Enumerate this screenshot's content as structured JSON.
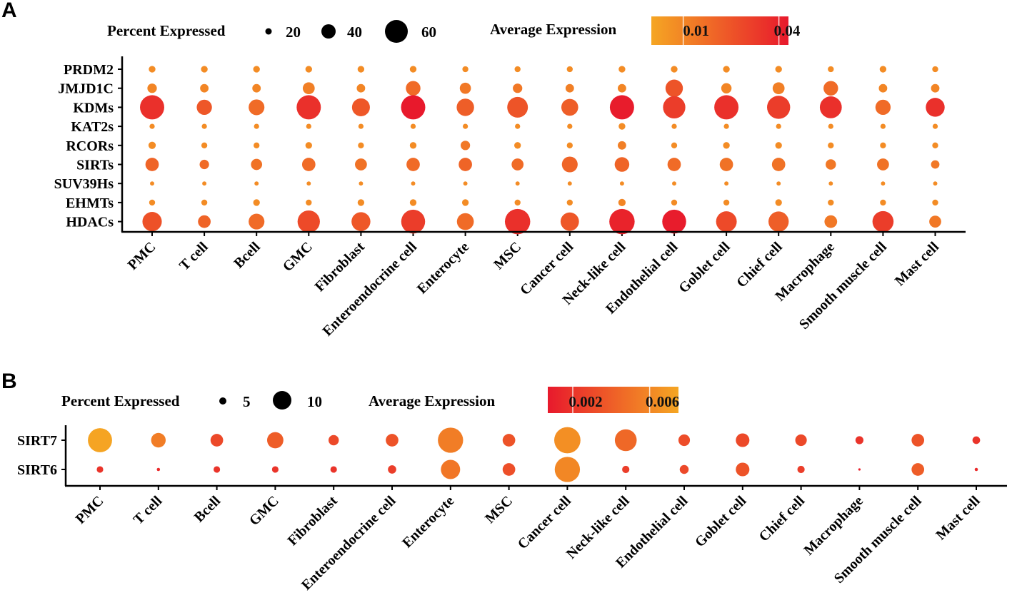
{
  "chart_data": [
    {
      "type": "dotplot",
      "panel": "A",
      "size_legend": {
        "title": "Percent Expressed",
        "values": [
          20,
          40,
          60
        ]
      },
      "color_legend": {
        "title": "Average Expression",
        "ticks": [
          0.01,
          0.04
        ],
        "tick_labels": [
          "0.01",
          "0.04"
        ],
        "range": [
          0.0,
          0.043
        ],
        "low_color": "#F5A623",
        "high_color": "#E8192C"
      },
      "cells": [
        "PMC",
        "T cell",
        "Bcell",
        "GMC",
        "Fibroblast",
        "Enteroendocrine cell",
        "Enterocyte",
        "MSC",
        "Cancer cell",
        "Neck-like cell",
        "Endothelial cell",
        "Goblet cell",
        "Chief cell",
        "Macrophage",
        "Smooth muscle cell",
        "Mast cell"
      ],
      "genes": [
        "PRDM2",
        "JMJD1C",
        "KDMs",
        "KAT2s",
        "RCORs",
        "SIRTs",
        "SUV39Hs",
        "EHMTs",
        "HDACs"
      ],
      "pct": [
        [
          5,
          5,
          5,
          5,
          5,
          5,
          4,
          4,
          4,
          5,
          5,
          5,
          5,
          4,
          5,
          4
        ],
        [
          10,
          8,
          8,
          16,
          8,
          24,
          14,
          10,
          8,
          8,
          34,
          12,
          16,
          24,
          8,
          8
        ],
        [
          66,
          26,
          28,
          66,
          36,
          66,
          34,
          48,
          32,
          66,
          56,
          66,
          60,
          54,
          26,
          40
        ],
        [
          3,
          3,
          3,
          3,
          3,
          3,
          3,
          3,
          3,
          5,
          3,
          3,
          3,
          3,
          3,
          3
        ],
        [
          6,
          4,
          4,
          5,
          4,
          5,
          10,
          5,
          4,
          8,
          4,
          5,
          5,
          4,
          4,
          4
        ],
        [
          20,
          10,
          14,
          20,
          16,
          20,
          20,
          16,
          28,
          24,
          20,
          20,
          20,
          12,
          16,
          8
        ],
        [
          2,
          2,
          2,
          2,
          2,
          2,
          2,
          2,
          2,
          2,
          2,
          2,
          2,
          2,
          2,
          2
        ],
        [
          4,
          4,
          5,
          4,
          5,
          5,
          5,
          4,
          4,
          6,
          4,
          4,
          5,
          4,
          4,
          4
        ],
        [
          42,
          18,
          28,
          56,
          40,
          64,
          32,
          72,
          38,
          72,
          64,
          48,
          46,
          18,
          50,
          16
        ]
      ],
      "avg": [
        [
          0.008,
          0.008,
          0.008,
          0.008,
          0.008,
          0.008,
          0.008,
          0.008,
          0.008,
          0.008,
          0.008,
          0.008,
          0.008,
          0.008,
          0.008,
          0.008
        ],
        [
          0.01,
          0.01,
          0.01,
          0.012,
          0.01,
          0.018,
          0.014,
          0.014,
          0.012,
          0.01,
          0.025,
          0.01,
          0.012,
          0.018,
          0.01,
          0.01
        ],
        [
          0.036,
          0.024,
          0.018,
          0.036,
          0.024,
          0.043,
          0.022,
          0.025,
          0.022,
          0.042,
          0.032,
          0.036,
          0.032,
          0.036,
          0.018,
          0.036
        ],
        [
          0.008,
          0.008,
          0.008,
          0.008,
          0.008,
          0.008,
          0.008,
          0.008,
          0.008,
          0.008,
          0.008,
          0.008,
          0.008,
          0.008,
          0.008,
          0.008
        ],
        [
          0.008,
          0.008,
          0.008,
          0.008,
          0.008,
          0.008,
          0.014,
          0.008,
          0.008,
          0.012,
          0.008,
          0.008,
          0.008,
          0.008,
          0.008,
          0.008
        ],
        [
          0.02,
          0.018,
          0.016,
          0.018,
          0.016,
          0.018,
          0.02,
          0.018,
          0.02,
          0.02,
          0.018,
          0.016,
          0.016,
          0.014,
          0.016,
          0.014
        ],
        [
          0.008,
          0.008,
          0.008,
          0.008,
          0.008,
          0.008,
          0.008,
          0.008,
          0.008,
          0.008,
          0.008,
          0.008,
          0.008,
          0.008,
          0.008,
          0.008
        ],
        [
          0.008,
          0.008,
          0.008,
          0.008,
          0.008,
          0.008,
          0.008,
          0.008,
          0.008,
          0.01,
          0.008,
          0.008,
          0.008,
          0.008,
          0.008,
          0.008
        ],
        [
          0.026,
          0.02,
          0.018,
          0.028,
          0.024,
          0.032,
          0.018,
          0.036,
          0.024,
          0.04,
          0.042,
          0.028,
          0.022,
          0.014,
          0.032,
          0.014
        ]
      ]
    },
    {
      "type": "dotplot",
      "panel": "B",
      "size_legend": {
        "title": "Percent Expressed",
        "values": [
          5,
          10
        ]
      },
      "color_legend": {
        "title": "Average Expression",
        "ticks": [
          0.002,
          0.006
        ],
        "tick_labels": [
          "0.002",
          "0.006"
        ],
        "range": [
          0.0007,
          0.0075
        ],
        "low_color": "#E8192C",
        "high_color": "#F5A623"
      },
      "cells": [
        "PMC",
        "T cell",
        "Bcell",
        "GMC",
        "Fibroblast",
        "Enteroendocrine cell",
        "Enterocyte",
        "MSC",
        "Cancer cell",
        "Neck-like cell",
        "Endothelial cell",
        "Goblet cell",
        "Chief cell",
        "Macrophage",
        "Smooth muscle cell",
        "Mast cell"
      ],
      "genes": [
        "SIRT7",
        "SIRT6"
      ],
      "pct": [
        [
          11,
          4,
          3,
          5,
          2,
          3,
          12,
          3,
          13,
          9,
          2.5,
          3.5,
          2.5,
          1.2,
          3,
          1.1
        ],
        [
          0.8,
          0.2,
          0.8,
          0.8,
          0.8,
          1.3,
          7,
          3,
          12,
          1,
          1.5,
          3.5,
          1,
          0.1,
          3,
          0.2
        ]
      ],
      "avg": [
        [
          0.0074,
          0.0055,
          0.003,
          0.004,
          0.003,
          0.0035,
          0.0055,
          0.0035,
          0.0064,
          0.0045,
          0.0032,
          0.003,
          0.003,
          0.002,
          0.0035,
          0.002
        ],
        [
          0.002,
          0.0015,
          0.002,
          0.002,
          0.002,
          0.0025,
          0.0052,
          0.0033,
          0.006,
          0.0025,
          0.003,
          0.0035,
          0.0025,
          0.001,
          0.004,
          0.0015
        ]
      ]
    }
  ]
}
